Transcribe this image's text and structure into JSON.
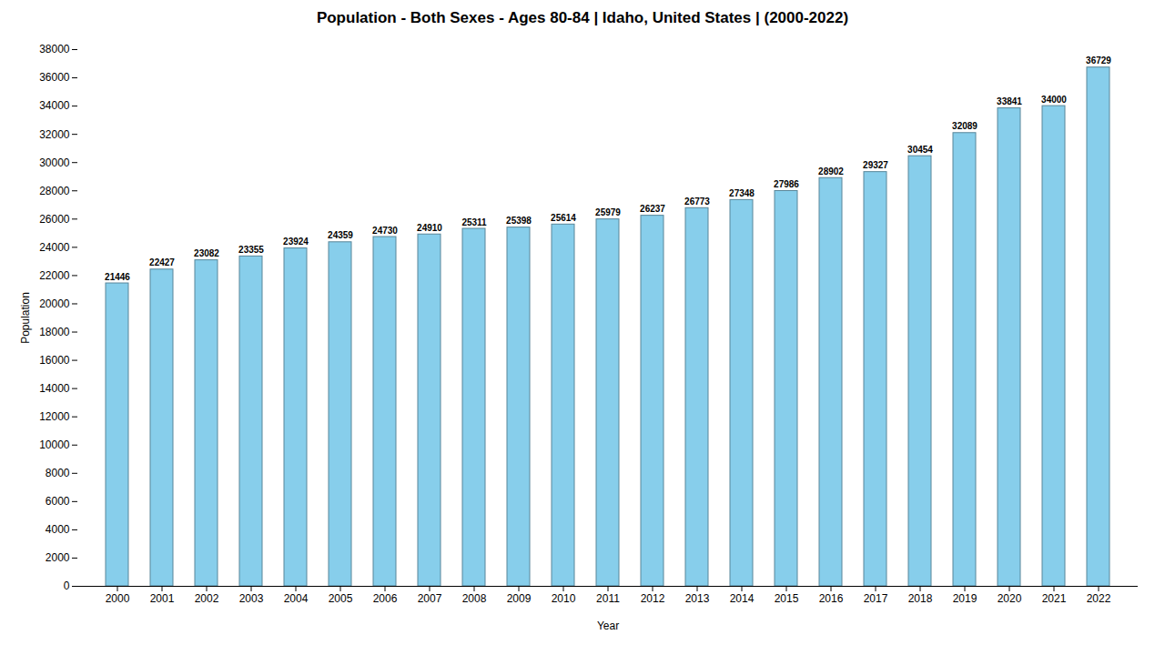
{
  "chart_data": {
    "type": "bar",
    "title": "Population - Both Sexes - Ages 80-84 | Idaho, United States |  (2000-2022)",
    "x_label": "Year",
    "y_label": "Population",
    "categories": [
      "2000",
      "2001",
      "2002",
      "2003",
      "2004",
      "2005",
      "2006",
      "2007",
      "2008",
      "2009",
      "2010",
      "2011",
      "2012",
      "2013",
      "2014",
      "2015",
      "2016",
      "2017",
      "2018",
      "2019",
      "2020",
      "2021",
      "2022"
    ],
    "values": [
      21446,
      22427,
      23082,
      23355,
      23924,
      24359,
      24730,
      24910,
      25311,
      25398,
      25614,
      25979,
      26237,
      26773,
      27348,
      27986,
      28902,
      29327,
      30454,
      32089,
      33841,
      34000,
      36729
    ],
    "color": "#87CEEB",
    "ylim": [
      0,
      38000
    ],
    "yticks": [
      0,
      2000,
      4000,
      6000,
      8000,
      10000,
      12000,
      14000,
      16000,
      18000,
      20000,
      22000,
      24000,
      26000,
      28000,
      30000,
      32000,
      34000,
      36000,
      38000
    ],
    "grid": false,
    "data_labels": true
  }
}
